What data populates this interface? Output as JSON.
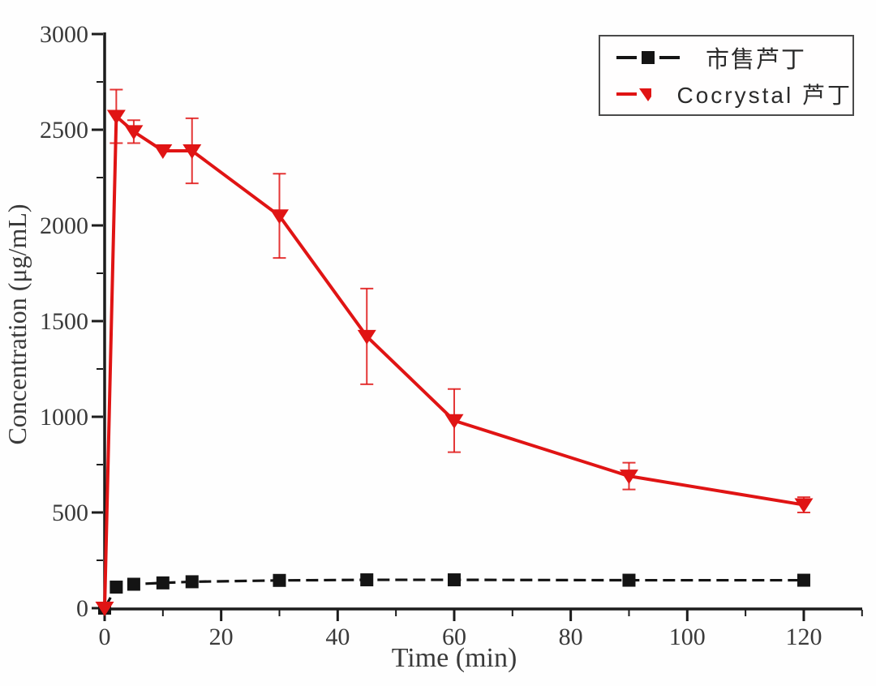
{
  "chart_data": {
    "type": "line",
    "title": "",
    "xlabel": "Time (min)",
    "ylabel": "Concentration (μg/mL)",
    "x_axis": {
      "min": 0,
      "max": 130,
      "major_ticks": [
        0,
        20,
        40,
        60,
        80,
        100,
        120
      ],
      "minor_step": 10
    },
    "y_axis": {
      "min": 0,
      "max": 3000,
      "major_ticks": [
        0,
        500,
        1000,
        1500,
        2000,
        2500,
        3000
      ],
      "minor_step": 250
    },
    "grid": false,
    "legend_position": "top-right",
    "series": [
      {
        "name": "市售芦丁",
        "color": "#141414",
        "marker": "square",
        "line_style": "dashed",
        "x": [
          0,
          2,
          5,
          10,
          15,
          30,
          45,
          60,
          90,
          120
        ],
        "y": [
          0,
          110,
          125,
          132,
          138,
          145,
          148,
          148,
          146,
          146
        ],
        "err": [
          0,
          0,
          0,
          0,
          0,
          0,
          0,
          0,
          0,
          0
        ]
      },
      {
        "name": "Cocrystal 芦丁",
        "color": "#e01414",
        "marker": "triangle-down",
        "line_style": "solid",
        "x": [
          0,
          2,
          5,
          10,
          15,
          30,
          45,
          60,
          90,
          120
        ],
        "y": [
          0,
          2570,
          2490,
          2390,
          2390,
          2050,
          1420,
          980,
          690,
          540
        ],
        "err": [
          0,
          140,
          60,
          0,
          170,
          220,
          250,
          165,
          70,
          40
        ]
      }
    ]
  }
}
